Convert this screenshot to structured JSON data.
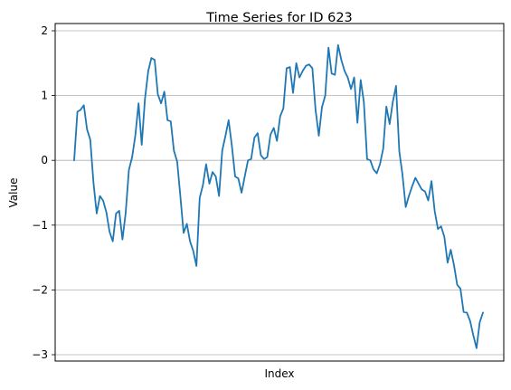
{
  "chart_data": {
    "type": "line",
    "title": "Time Series for ID 623",
    "xlabel": "Index",
    "ylabel": "Value",
    "ylim": [
      -3.1,
      2.0
    ],
    "yticks": [
      {
        "value": 2,
        "label": "2"
      },
      {
        "value": 1,
        "label": "1"
      },
      {
        "value": 0,
        "label": "0"
      },
      {
        "value": -1,
        "label": "−1"
      },
      {
        "value": -2,
        "label": "−2"
      },
      {
        "value": -3,
        "label": "−3"
      }
    ],
    "grid": "horizontal",
    "series": [
      {
        "color": "#1f77b4",
        "values": [
          0.0,
          0.75,
          0.78,
          0.85,
          0.48,
          0.32,
          -0.35,
          -0.82,
          -0.55,
          -0.62,
          -0.8,
          -1.1,
          -1.25,
          -0.82,
          -0.78,
          -1.22,
          -0.82,
          -0.15,
          0.05,
          0.38,
          0.88,
          0.24,
          0.95,
          1.38,
          1.58,
          1.55,
          1.02,
          0.88,
          1.06,
          0.62,
          0.6,
          0.15,
          -0.02,
          -0.55,
          -1.12,
          -0.98,
          -1.25,
          -1.4,
          -1.63,
          -0.58,
          -0.38,
          -0.06,
          -0.36,
          -0.18,
          -0.25,
          -0.55,
          0.15,
          0.38,
          0.62,
          0.22,
          -0.25,
          -0.28,
          -0.5,
          -0.25,
          0.0,
          0.02,
          0.35,
          0.42,
          0.08,
          0.02,
          0.05,
          0.4,
          0.5,
          0.3,
          0.68,
          0.8,
          1.42,
          1.44,
          1.04,
          1.5,
          1.28,
          1.38,
          1.46,
          1.48,
          1.42,
          0.78,
          0.38,
          0.82,
          1.0,
          1.74,
          1.34,
          1.32,
          1.78,
          1.55,
          1.38,
          1.28,
          1.1,
          1.28,
          0.58,
          1.24,
          0.9,
          0.02,
          0.0,
          -0.14,
          -0.2,
          -0.06,
          0.18,
          0.83,
          0.56,
          0.9,
          1.15,
          0.14,
          -0.22,
          -0.72,
          -0.55,
          -0.4,
          -0.27,
          -0.36,
          -0.45,
          -0.48,
          -0.62,
          -0.32,
          -0.78,
          -1.06,
          -1.02,
          -1.18,
          -1.58,
          -1.38,
          -1.62,
          -1.92,
          -1.98,
          -2.34,
          -2.35,
          -2.48,
          -2.7,
          -2.9,
          -2.5,
          -2.35
        ]
      }
    ]
  }
}
